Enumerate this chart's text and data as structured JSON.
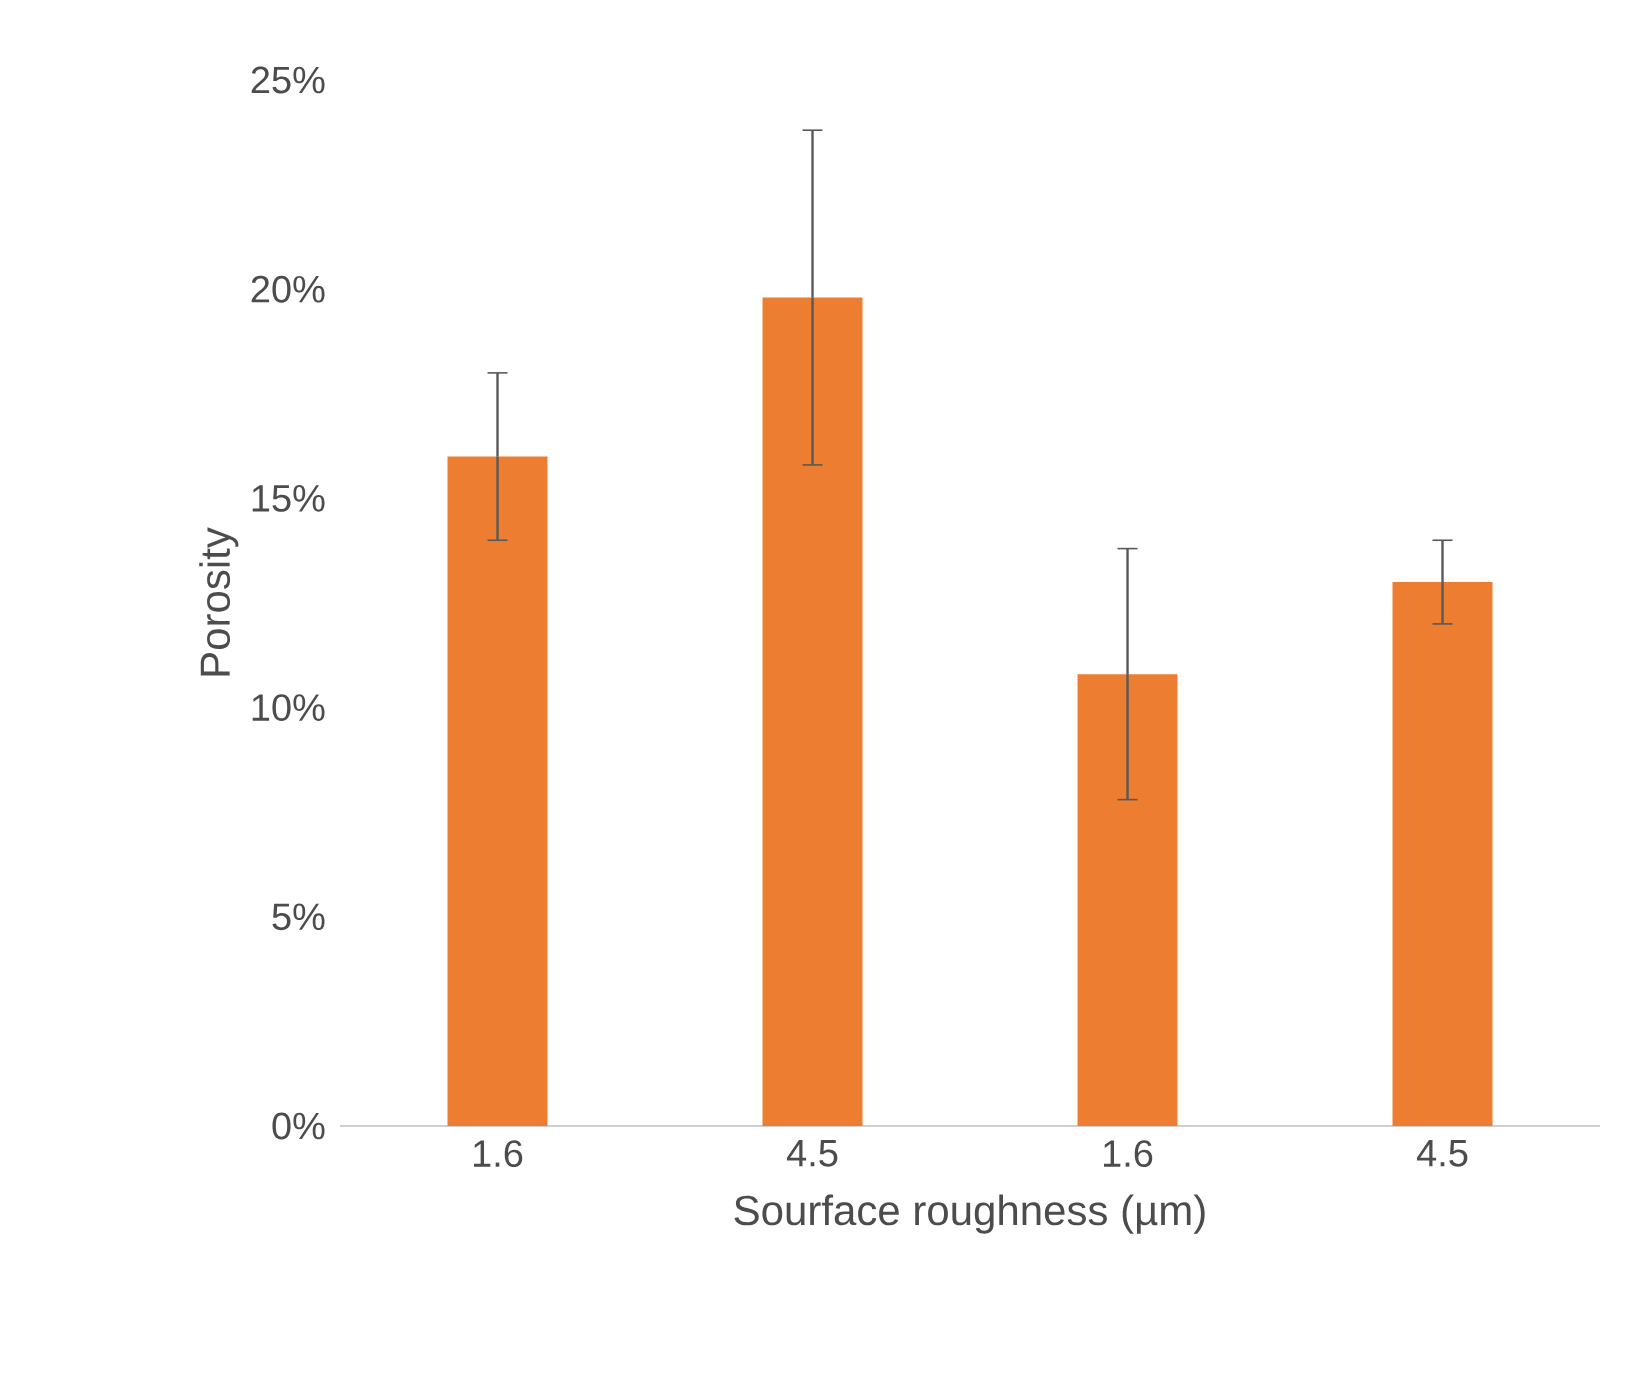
{
  "chart_data": {
    "type": "bar",
    "xlabel": "Sourface roughness (µm)",
    "ylabel": "Porosity",
    "categories": [
      "1.6",
      "4.5",
      "1.6",
      "4.5"
    ],
    "values": [
      16,
      19.8,
      10.8,
      13
    ],
    "errors": [
      2,
      4,
      3,
      1
    ],
    "color": "#ed7d31",
    "ylim": [
      0,
      25
    ],
    "yticks": [
      {
        "value": 0,
        "label": "0%"
      },
      {
        "value": 5,
        "label": "5%"
      },
      {
        "value": 10,
        "label": "10%"
      },
      {
        "value": 15,
        "label": "15%"
      },
      {
        "value": 20,
        "label": "20%"
      },
      {
        "value": 25,
        "label": "25%"
      }
    ],
    "tick_labels": "xy"
  }
}
